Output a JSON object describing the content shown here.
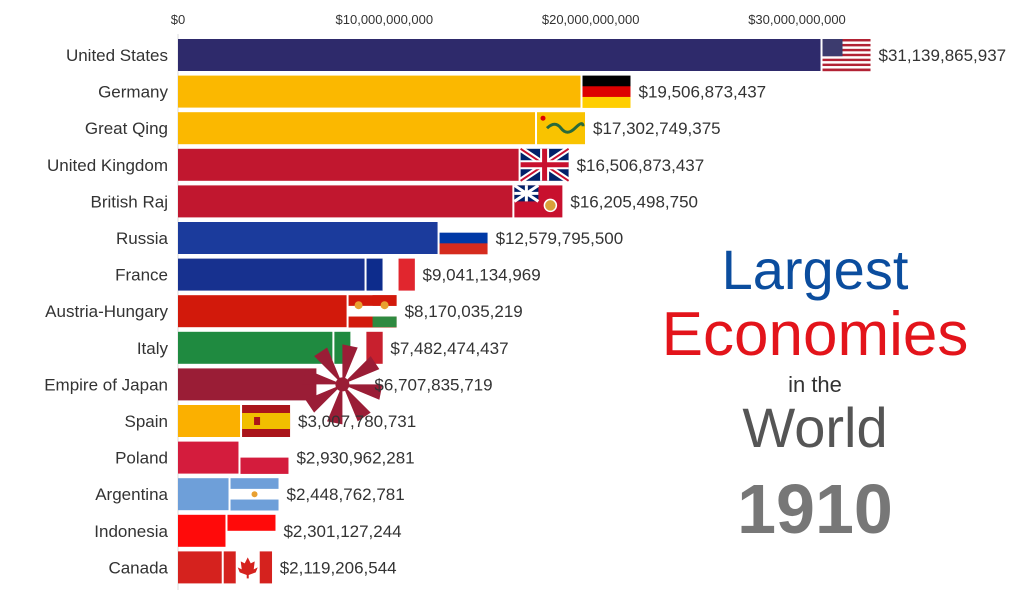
{
  "chart_data": {
    "type": "bar",
    "orientation": "horizontal",
    "title_lines": [
      "Largest",
      "Economies",
      "in the",
      "World"
    ],
    "year": "1910",
    "xlim": [
      0,
      33600000000
    ],
    "x_ticks": [
      0,
      10000000000,
      20000000000,
      30000000000
    ],
    "x_tick_labels": [
      "$0",
      "$10,000,000,000",
      "$20,000,000,000",
      "$30,000,000,000"
    ],
    "axis_position": "top",
    "grid": false,
    "categories": [
      "United States",
      "Germany",
      "Great Qing",
      "United Kingdom",
      "British Raj",
      "Russia",
      "France",
      "Austria-Hungary",
      "Italy",
      "Empire of Japan",
      "Spain",
      "Poland",
      "Argentina",
      "Indonesia",
      "Canada"
    ],
    "values": [
      31139865937,
      19506873437,
      17302749375,
      16506873437,
      16205498750,
      12579795500,
      9041134969,
      8170035219,
      7482474437,
      6707835719,
      3007780731,
      2930962281,
      2448762781,
      2301127244,
      2119206544
    ],
    "value_labels": [
      "$31,139,865,937",
      "$19,506,873,437",
      "$17,302,749,375",
      "$16,506,873,437",
      "$16,205,498,750",
      "$12,579,795,500",
      "$9,041,134,969",
      "$8,170,035,219",
      "$7,482,474,437",
      "$6,707,835,719",
      "$3,007,780,731",
      "$2,930,962,281",
      "$2,448,762,781",
      "$2,301,127,244",
      "$2,119,206,544"
    ],
    "colors": [
      "#2e2a6b",
      "#fbb800",
      "#fbb800",
      "#c1172f",
      "#c1172f",
      "#1b3b9c",
      "#17318f",
      "#d2190b",
      "#1f8a40",
      "#9a1d36",
      "#fbb000",
      "#d41c3d",
      "#6e9fd9",
      "#ff0a0a",
      "#d5221e"
    ],
    "flags": [
      "us-flag",
      "germany-flag",
      "qing-flag",
      "uk-flag",
      "british-raj-flag",
      "russia-flag",
      "france-flag",
      "austria-hungary-flag",
      "italy-flag",
      "japan-rising-sun-flag",
      "spain-flag",
      "poland-flag",
      "argentina-flag",
      "indonesia-flag",
      "canada-flag"
    ]
  }
}
